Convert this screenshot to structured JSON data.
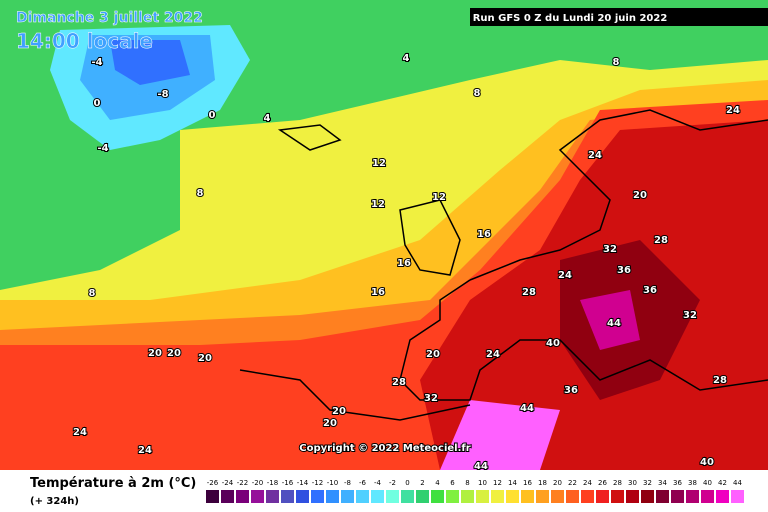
{
  "header": {
    "date": "Dimanche 3 juillet 2022",
    "time": "14:00 locale",
    "run": "Run GFS 0 Z du Lundi 20 juin 2022"
  },
  "copyright": "Copyright © 2022 Meteociel.fr",
  "legend": {
    "title": "Température à 2m (°C)",
    "lead": "(+ 324h)",
    "values": [
      -26,
      -24,
      -22,
      -20,
      -18,
      -16,
      -14,
      -12,
      -10,
      -8,
      -6,
      -4,
      -2,
      0,
      2,
      4,
      6,
      8,
      10,
      12,
      14,
      16,
      18,
      20,
      22,
      24,
      26,
      28,
      30,
      32,
      34,
      36,
      38,
      40,
      42,
      44
    ],
    "colors": [
      "#3c003c",
      "#5a005a",
      "#7a007a",
      "#96109a",
      "#7030a0",
      "#5050c0",
      "#3050e0",
      "#3070ff",
      "#3090ff",
      "#40b0ff",
      "#50d0ff",
      "#60e8ff",
      "#70ffe0",
      "#40e0a0",
      "#30d070",
      "#40e040",
      "#80f040",
      "#b0f040",
      "#d8f040",
      "#f0f040",
      "#ffe030",
      "#ffc020",
      "#ffa020",
      "#ff8020",
      "#ff6020",
      "#ff4020",
      "#f02020",
      "#d01010",
      "#b00010",
      "#900010",
      "#800030",
      "#900050",
      "#b00070",
      "#d00090",
      "#f000c0",
      "#ff60ff"
    ]
  },
  "map_labels": [
    -4,
    -8,
    -4,
    0,
    0,
    4,
    4,
    8,
    8,
    8,
    8,
    12,
    12,
    12,
    16,
    16,
    16,
    20,
    20,
    20,
    20,
    20,
    24,
    24,
    24,
    28,
    28,
    32,
    32,
    36,
    36,
    40,
    40,
    44,
    44,
    44,
    20,
    24,
    28,
    24,
    20,
    32,
    36,
    24,
    28
  ]
}
